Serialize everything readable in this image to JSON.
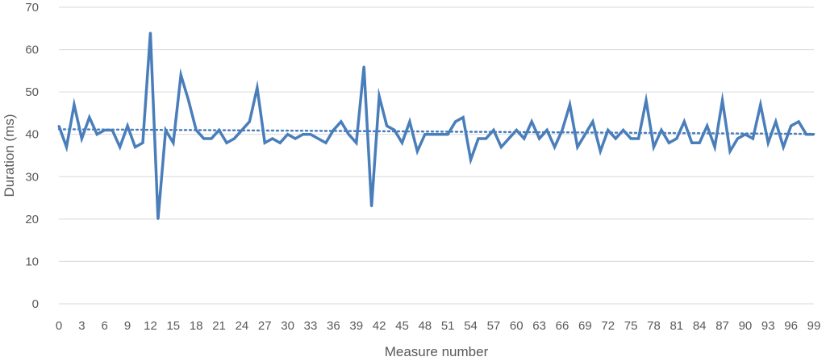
{
  "chart_data": {
    "type": "line",
    "xlabel": "Measure number",
    "ylabel": "Duration (ms)",
    "ylim": [
      0,
      70
    ],
    "yticks": [
      0,
      10,
      20,
      30,
      40,
      50,
      60,
      70
    ],
    "xlim": [
      0,
      99
    ],
    "xticks": [
      0,
      3,
      6,
      9,
      12,
      15,
      18,
      21,
      24,
      27,
      30,
      33,
      36,
      39,
      42,
      45,
      48,
      51,
      54,
      57,
      60,
      63,
      66,
      69,
      72,
      75,
      78,
      81,
      84,
      87,
      90,
      93,
      96,
      99
    ],
    "grid": "horizontal",
    "legend": "none",
    "colors": {
      "series": "#4a7ebb",
      "trendline": "#4a7ebb",
      "grid": "#d9d9d9",
      "text": "#595959"
    },
    "series": [
      {
        "x": [
          0,
          1,
          2,
          3,
          4,
          5,
          6,
          7,
          8,
          9,
          10,
          11,
          12,
          13,
          14,
          15,
          16,
          17,
          18,
          19,
          20,
          21,
          22,
          23,
          24,
          25,
          26,
          27,
          28,
          29,
          30,
          31,
          32,
          33,
          34,
          35,
          36,
          37,
          38,
          39,
          40,
          41,
          42,
          43,
          44,
          45,
          46,
          47,
          48,
          49,
          50,
          51,
          52,
          53,
          54,
          55,
          56,
          57,
          58,
          59,
          60,
          61,
          62,
          63,
          64,
          65,
          66,
          67,
          68,
          69,
          70,
          71,
          72,
          73,
          74,
          75,
          76,
          77,
          78,
          79,
          80,
          81,
          82,
          83,
          84,
          85,
          86,
          87,
          88,
          89,
          90,
          91,
          92,
          93,
          94,
          95,
          96,
          97,
          98,
          99
        ],
        "values": [
          42,
          37,
          47,
          39,
          44,
          40,
          41,
          41,
          37,
          42,
          37,
          38,
          64,
          20,
          41,
          38,
          54,
          48,
          41,
          39,
          39,
          41,
          38,
          39,
          41,
          43,
          51,
          38,
          39,
          38,
          40,
          39,
          40,
          40,
          39,
          38,
          41,
          43,
          40,
          38,
          56,
          23,
          49,
          42,
          41,
          38,
          43,
          36,
          40,
          40,
          40,
          40,
          43,
          44,
          34,
          39,
          39,
          41,
          37,
          39,
          41,
          39,
          43,
          39,
          41,
          37,
          41,
          47,
          37,
          40,
          43,
          36,
          41,
          39,
          41,
          39,
          39,
          48,
          37,
          41,
          38,
          39,
          43,
          38,
          38,
          42,
          37,
          48,
          36,
          39,
          40,
          39,
          47,
          38,
          43,
          37,
          42,
          43,
          40,
          40
        ]
      }
    ],
    "trendline": {
      "type": "linear",
      "style": "dotted",
      "from": [
        0,
        41.2
      ],
      "to": [
        99,
        40.1
      ]
    }
  }
}
